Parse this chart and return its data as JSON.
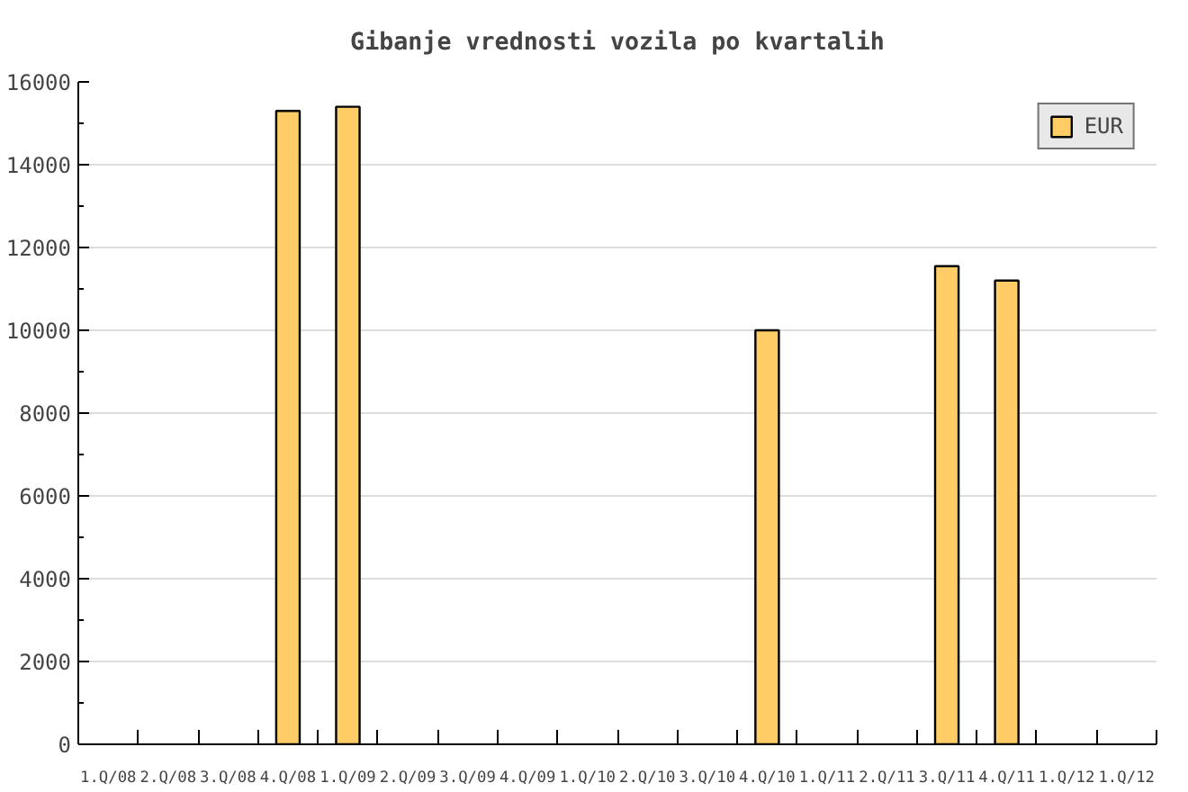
{
  "chart_data": {
    "type": "bar",
    "title": "Gibanje vrednosti vozila po kvartalih",
    "categories": [
      "1.Q/08",
      "2.Q/08",
      "3.Q/08",
      "4.Q/08",
      "1.Q/09",
      "2.Q/09",
      "3.Q/09",
      "4.Q/09",
      "1.Q/10",
      "2.Q/10",
      "3.Q/10",
      "4.Q/10",
      "1.Q/11",
      "2.Q/11",
      "3.Q/11",
      "4.Q/11",
      "1.Q/12",
      "1.Q/12"
    ],
    "series": [
      {
        "name": "EUR",
        "color": "#ffcc66",
        "values": [
          null,
          null,
          null,
          15300,
          15400,
          null,
          null,
          null,
          null,
          null,
          null,
          10000,
          null,
          null,
          11550,
          11200,
          null,
          null
        ]
      }
    ],
    "ylim": [
      0,
      16000
    ],
    "yticks": [
      0,
      2000,
      4000,
      6000,
      8000,
      10000,
      12000,
      14000,
      16000
    ],
    "grid": "y",
    "legend": "top right"
  }
}
